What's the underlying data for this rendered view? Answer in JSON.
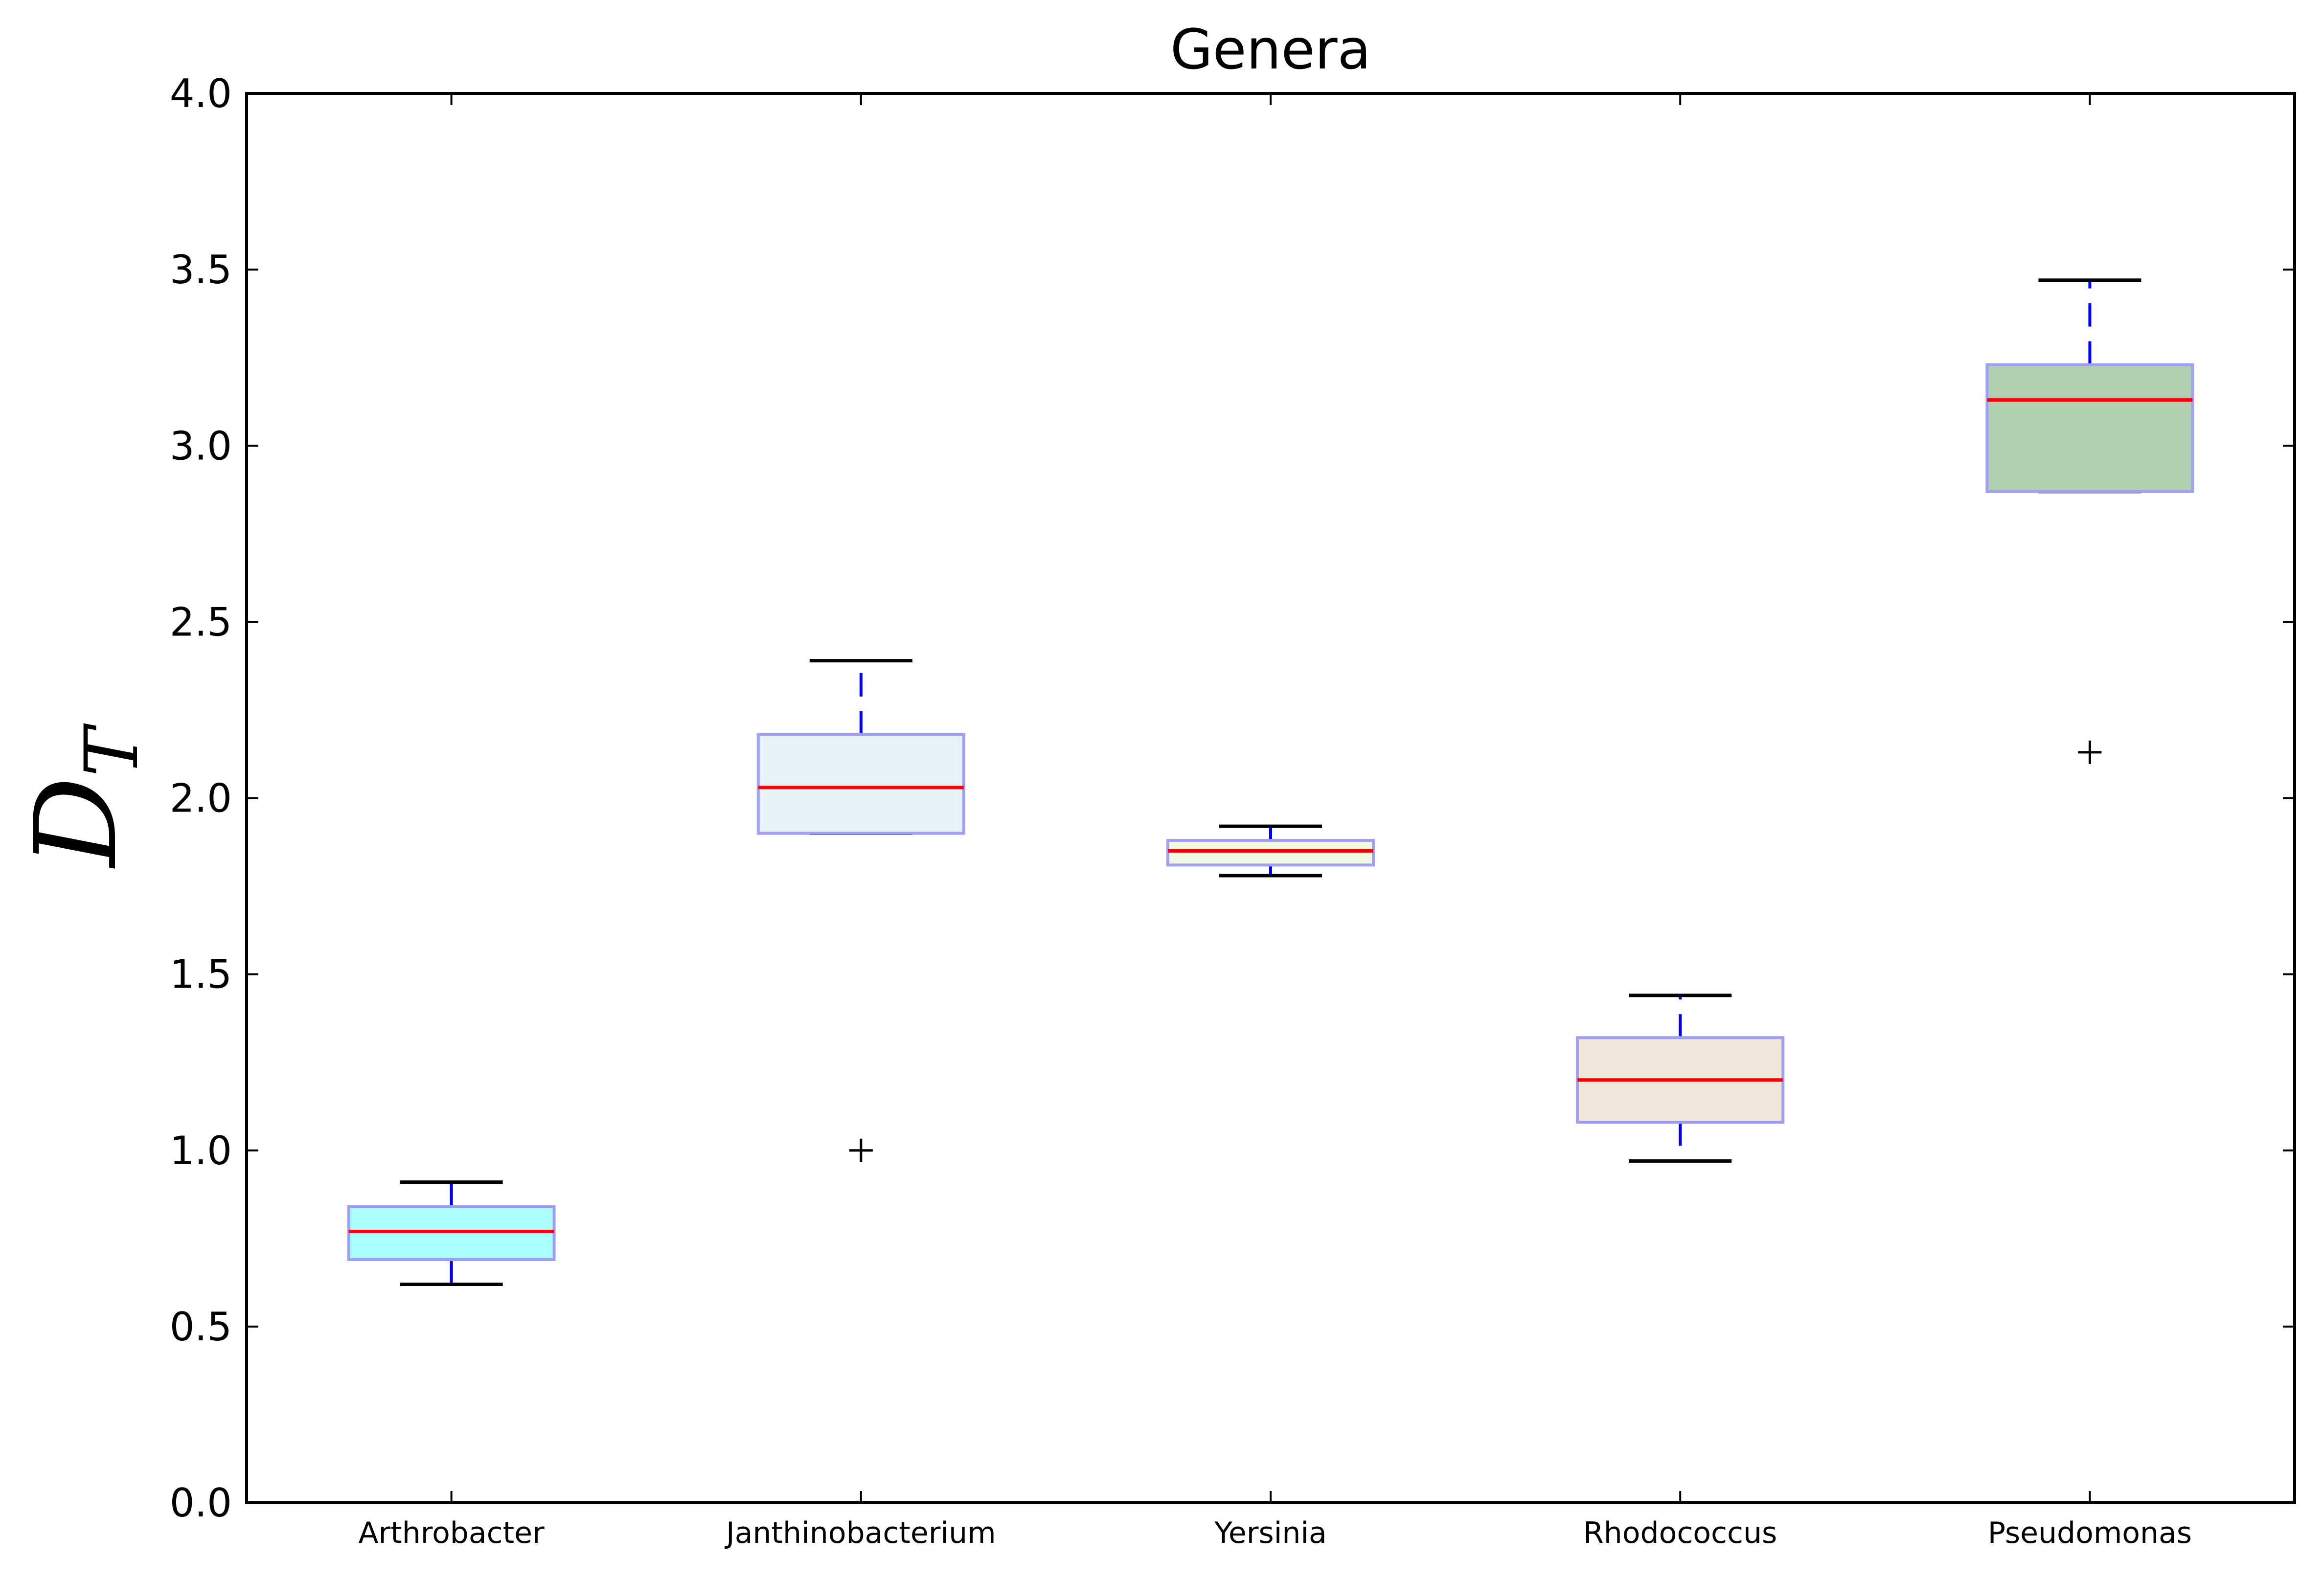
{
  "chart_data": {
    "type": "box",
    "title": "Genera",
    "xlabel": "",
    "ylabel": "D",
    "ylabel_subscript": "T",
    "ylim": [
      0.0,
      4.0
    ],
    "yticks": [
      "0.0",
      "0.5",
      "1.0",
      "1.5",
      "2.0",
      "2.5",
      "3.0",
      "3.5",
      "4.0"
    ],
    "baseline_dashed_at": 0.0,
    "categories": [
      "Arthrobacter",
      "Janthinobacterium",
      "Yersinia",
      "Rhodococcus",
      "Pseudomonas"
    ],
    "boxes": [
      {
        "category": "Arthrobacter",
        "whisker_low": 0.62,
        "q1": 0.69,
        "median": 0.77,
        "q3": 0.84,
        "whisker_high": 0.91,
        "outliers": [],
        "fill": "#aaffff"
      },
      {
        "category": "Janthinobacterium",
        "whisker_low": 1.9,
        "q1": 1.9,
        "median": 2.03,
        "q3": 2.18,
        "whisker_high": 2.39,
        "outliers": [
          1.0
        ],
        "fill": "#e6f2f5"
      },
      {
        "category": "Yersinia",
        "whisker_low": 1.78,
        "q1": 1.81,
        "median": 1.85,
        "q3": 1.88,
        "whisker_high": 1.92,
        "outliers": [],
        "fill": "#f0f8e2"
      },
      {
        "category": "Rhodococcus",
        "whisker_low": 0.97,
        "q1": 1.08,
        "median": 1.2,
        "q3": 1.32,
        "whisker_high": 1.44,
        "outliers": [],
        "fill": "#f0e6da"
      },
      {
        "category": "Pseudomonas",
        "whisker_low": 2.87,
        "q1": 2.87,
        "median": 3.13,
        "q3": 3.23,
        "whisker_high": 3.47,
        "outliers": [
          2.13
        ],
        "fill": "#b2d1b2"
      }
    ],
    "colors": {
      "box_edge": "#9f9ff5",
      "median": "#ff0000",
      "whisker": "#0000ff",
      "cap": "#000000",
      "outlier": "#000000",
      "baseline": "#9a9a9a"
    },
    "grid": false,
    "legend": "none"
  }
}
